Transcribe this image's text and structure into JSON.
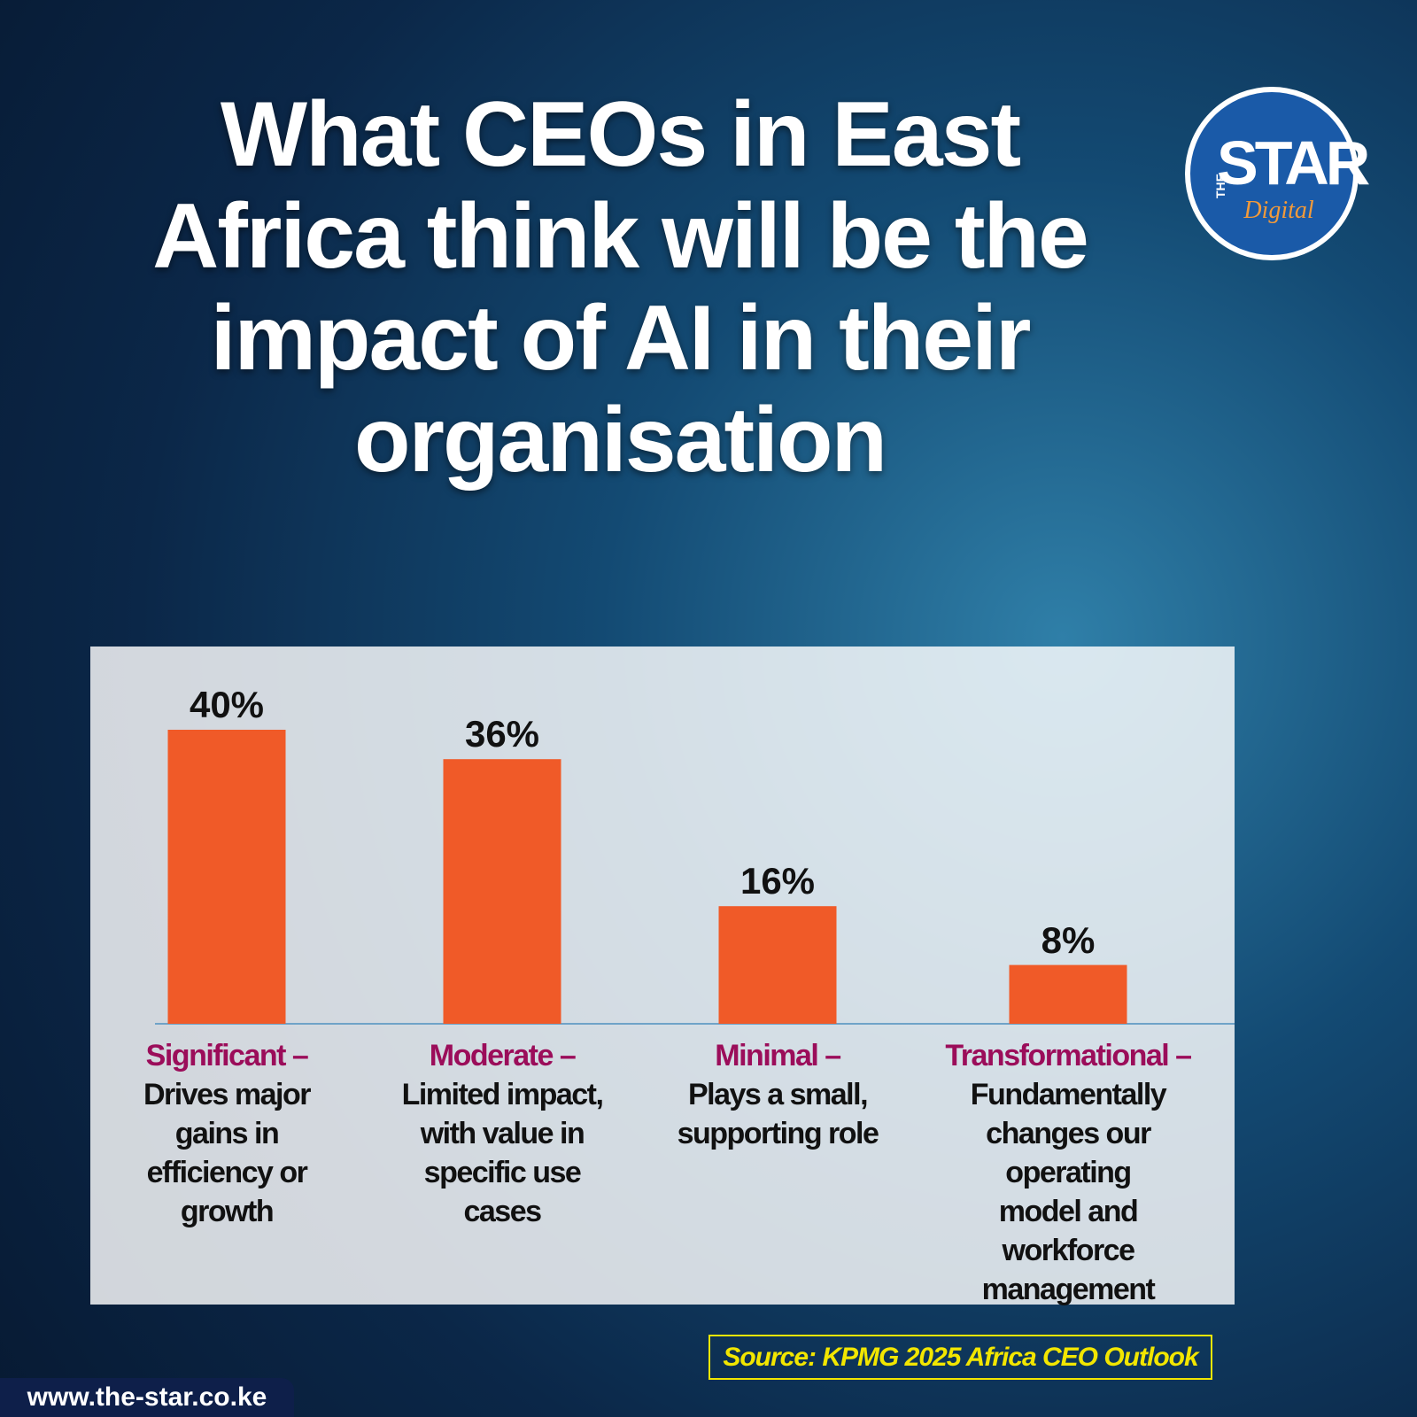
{
  "chart_data": {
    "type": "bar",
    "title": "What CEOs in East Africa think will be the impact of AI in their organisation",
    "categories": [
      "Significant –",
      "Moderate –",
      "Minimal –",
      "Transformational –"
    ],
    "descriptions": [
      "Drives major gains in efficiency or growth",
      "Limited impact, with value in specific use cases",
      "Plays a small, supporting role",
      "Fundamentally changes our operating model and workforce management"
    ],
    "values": [
      40,
      36,
      16,
      8
    ],
    "value_labels": [
      "40%",
      "36%",
      "16%",
      "8%"
    ],
    "color": "#f05a28",
    "category_color": "#9b0d5a"
  },
  "logo": {
    "prefix": "THE",
    "name": "STAR",
    "suffix": "Digital"
  },
  "source": "Source: KPMG 2025 Africa CEO Outlook",
  "website": "www.the-star.co.ke"
}
